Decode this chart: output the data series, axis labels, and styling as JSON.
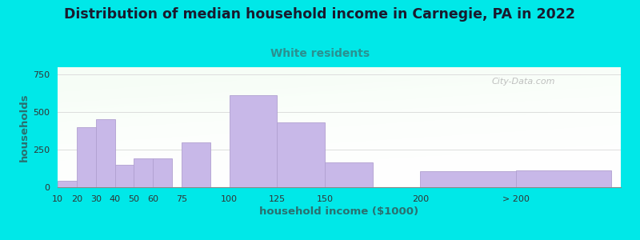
{
  "title": "Distribution of median household income in Carnegie, PA in 2022",
  "subtitle": "White residents",
  "xlabel": "household income ($1000)",
  "ylabel": "households",
  "background_color": "#00e8e8",
  "bar_color": "#c8b8e8",
  "bar_edge_color": "#b0a0d0",
  "title_fontsize": 12.5,
  "title_color": "#1a1a2e",
  "subtitle_fontsize": 10,
  "subtitle_color": "#2a9090",
  "ylabel_color": "#2a7070",
  "xlabel_color": "#2a7070",
  "tick_color": "#333333",
  "ylim": [
    0,
    800
  ],
  "yticks": [
    0,
    250,
    500,
    750
  ],
  "categories": [
    "10",
    "20",
    "30",
    "40",
    "50",
    "60",
    "75",
    "100",
    "125",
    "150",
    "200",
    "> 200"
  ],
  "values": [
    45,
    400,
    455,
    150,
    190,
    190,
    300,
    615,
    430,
    165,
    105,
    110
  ],
  "bar_widths": [
    10,
    10,
    10,
    10,
    10,
    10,
    15,
    25,
    25,
    25,
    50,
    50
  ],
  "bar_lefts": [
    10,
    20,
    30,
    40,
    50,
    60,
    75,
    100,
    125,
    150,
    200,
    250
  ],
  "x_min": 10,
  "x_max": 305,
  "watermark": "City-Data.com",
  "grid_color": "#dddddd"
}
